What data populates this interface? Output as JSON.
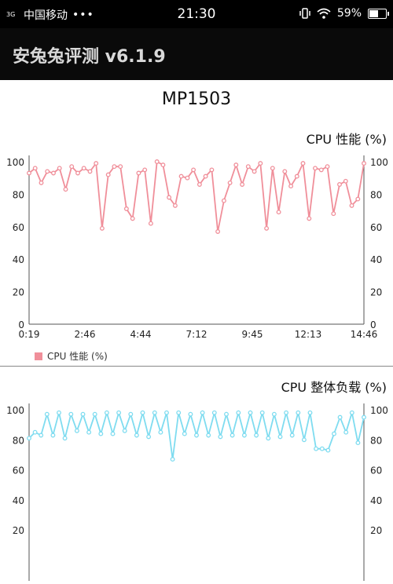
{
  "status_bar": {
    "network": "3G",
    "carrier": "中国移动",
    "more": "•••",
    "time": "21:30",
    "battery": "59%",
    "battery_level": 0.59
  },
  "app": {
    "title": "安兔兔评测 v6.1.9"
  },
  "device": {
    "model": "MP1503"
  },
  "chart_data": [
    {
      "type": "line",
      "title": "CPU 性能 (%)",
      "legend": [
        "CPU 性能 (%)"
      ],
      "color": "#f08f9a",
      "x_tick_labels": [
        "0:19",
        "2:46",
        "4:44",
        "7:12",
        "9:45",
        "12:13",
        "14:46"
      ],
      "ylim": [
        0,
        100
      ],
      "y_ticks": [
        0,
        20,
        40,
        60,
        80,
        100
      ],
      "series": [
        {
          "values": [
            93,
            96,
            87,
            94,
            93,
            96,
            83,
            97,
            93,
            96,
            94,
            99,
            59,
            92,
            97,
            97,
            71,
            65,
            93,
            95,
            62,
            100,
            98,
            78,
            73,
            91,
            90,
            95,
            86,
            91,
            95,
            57,
            76,
            87,
            98,
            86,
            97,
            94,
            99,
            59,
            96,
            69,
            94,
            85,
            91,
            99,
            65,
            96,
            95,
            97,
            68,
            86,
            88,
            73,
            77,
            99
          ]
        }
      ]
    },
    {
      "type": "line",
      "title": "CPU 整体负载 (%)",
      "color": "#7fdcf0",
      "ylim": [
        0,
        100
      ],
      "y_ticks": [
        20,
        40,
        60,
        80,
        100
      ],
      "series": [
        {
          "values": [
            81,
            85,
            83,
            97,
            83,
            98,
            81,
            97,
            86,
            97,
            85,
            97,
            84,
            98,
            84,
            98,
            86,
            97,
            83,
            98,
            82,
            98,
            85,
            98,
            67,
            98,
            84,
            97,
            83,
            98,
            83,
            98,
            82,
            97,
            83,
            98,
            83,
            98,
            83,
            98,
            81,
            97,
            82,
            98,
            83,
            98,
            80,
            98,
            74,
            74,
            73,
            84,
            95,
            85,
            98,
            78,
            95
          ]
        }
      ]
    }
  ]
}
